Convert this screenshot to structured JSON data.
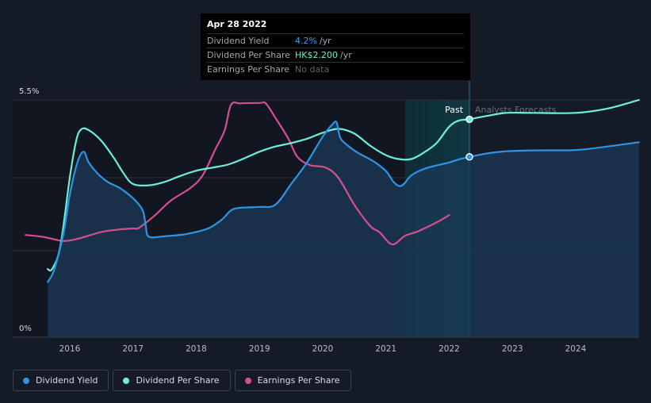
{
  "tooltip": {
    "date": "Apr 28 2022",
    "rows": [
      {
        "label": "Dividend Yield",
        "value": "4.2%",
        "unit": "/yr",
        "color": "#3b9ff0"
      },
      {
        "label": "Dividend Per Share",
        "value": "HK$2.200",
        "unit": "/yr",
        "color": "#6cf0d2"
      },
      {
        "label": "Earnings Per Share",
        "value": "No data",
        "unit": "",
        "color": "#5f646c"
      }
    ]
  },
  "legend": [
    {
      "label": "Dividend Yield",
      "color": "#2d94e6"
    },
    {
      "label": "Dividend Per Share",
      "color": "#6cf0d2"
    },
    {
      "label": "Earnings Per Share",
      "color": "#d64f8c"
    }
  ],
  "chart_data": {
    "type": "line",
    "y_tick_labels": [
      "5.5%",
      "0%"
    ],
    "ylim": [
      0,
      5.5
    ],
    "xlim": [
      2015.3,
      2025.0
    ],
    "x_ticks": [
      2016,
      2017,
      2018,
      2019,
      2020,
      2021,
      2022,
      2023,
      2024
    ],
    "x_tick_labels": [
      "2016",
      "2017",
      "2018",
      "2019",
      "2020",
      "2021",
      "2022",
      "2023",
      "2024"
    ],
    "grid": true,
    "past_label": "Past",
    "forecast_label": "Analysts Forecasts",
    "forecast_start": 2022.32,
    "shaded_start": 2021.3,
    "colors": {
      "dividend_yield": "#2d94e6",
      "dividend_per_share": "#6cf0d2",
      "earnings_per_share": "#d64f8c",
      "area_fill": "#1b3a57",
      "grid": "#2a303b"
    },
    "series": [
      {
        "name": "Dividend Yield",
        "key": "dividend_yield",
        "area": true,
        "x": [
          2015.65,
          2015.75,
          2015.9,
          2016.0,
          2016.12,
          2016.22,
          2016.3,
          2016.45,
          2016.6,
          2016.8,
          2017.0,
          2017.15,
          2017.2,
          2017.25,
          2017.5,
          2017.8,
          2018.0,
          2018.2,
          2018.4,
          2018.55,
          2018.7,
          2019.0,
          2019.25,
          2019.5,
          2019.75,
          2020.0,
          2020.15,
          2020.22,
          2020.27,
          2020.35,
          2020.55,
          2020.8,
          2021.0,
          2021.12,
          2021.22,
          2021.3,
          2021.4,
          2021.6,
          2021.8,
          2022.0,
          2022.15,
          2022.32
        ],
        "y": [
          1.28,
          1.55,
          2.4,
          3.3,
          4.05,
          4.3,
          4.05,
          3.78,
          3.6,
          3.45,
          3.22,
          2.95,
          2.6,
          2.33,
          2.34,
          2.38,
          2.44,
          2.53,
          2.72,
          2.94,
          3.0,
          3.02,
          3.07,
          3.55,
          4.05,
          4.65,
          4.93,
          4.98,
          4.65,
          4.5,
          4.28,
          4.08,
          3.85,
          3.6,
          3.5,
          3.58,
          3.75,
          3.9,
          3.98,
          4.05,
          4.12,
          4.18
        ]
      },
      {
        "name": "Dividend Yield forecast",
        "key": "dividend_yield",
        "area": true,
        "x": [
          2022.32,
          2022.6,
          2022.9,
          2023.3,
          2024.0,
          2024.5,
          2025.0
        ],
        "y": [
          4.18,
          4.26,
          4.31,
          4.33,
          4.34,
          4.42,
          4.52
        ]
      },
      {
        "name": "Dividend Per Share",
        "key": "dividend_per_share",
        "area": false,
        "x": [
          2015.65,
          2015.72,
          2015.85,
          2016.0,
          2016.1,
          2016.18,
          2016.3,
          2016.5,
          2016.7,
          2016.85,
          2017.0,
          2017.25,
          2017.5,
          2017.75,
          2018.0,
          2018.25,
          2018.5,
          2018.75,
          2019.0,
          2019.25,
          2019.5,
          2019.75,
          2020.0,
          2020.25,
          2020.5,
          2020.75,
          2021.0,
          2021.2,
          2021.4,
          2021.6,
          2021.8,
          2022.0,
          2022.15,
          2022.32
        ],
        "y": [
          1.58,
          1.58,
          2.1,
          3.7,
          4.55,
          4.82,
          4.8,
          4.55,
          4.15,
          3.8,
          3.55,
          3.52,
          3.6,
          3.74,
          3.86,
          3.93,
          4.0,
          4.14,
          4.3,
          4.42,
          4.5,
          4.6,
          4.74,
          4.83,
          4.72,
          4.44,
          4.22,
          4.13,
          4.13,
          4.28,
          4.5,
          4.88,
          5.02,
          5.05
        ]
      },
      {
        "name": "Dividend Per Share forecast",
        "key": "dividend_per_share",
        "area": false,
        "x": [
          2022.32,
          2022.6,
          2022.9,
          2023.3,
          2024.0,
          2024.5,
          2025.0
        ],
        "y": [
          5.05,
          5.13,
          5.2,
          5.2,
          5.2,
          5.3,
          5.5
        ]
      },
      {
        "name": "Earnings Per Share",
        "key": "earnings_per_share",
        "area": false,
        "x": [
          2015.3,
          2015.6,
          2015.9,
          2016.15,
          2016.5,
          2016.8,
          2017.0,
          2017.1,
          2017.35,
          2017.6,
          2017.9,
          2018.1,
          2018.3,
          2018.45,
          2018.55,
          2018.7,
          2019.0,
          2019.1,
          2019.25,
          2019.45,
          2019.6,
          2019.8,
          2020.05,
          2020.25,
          2020.5,
          2020.75,
          2020.9,
          2021.1,
          2021.3,
          2021.5,
          2021.8,
          2022.0
        ],
        "y": [
          2.37,
          2.32,
          2.23,
          2.29,
          2.44,
          2.5,
          2.52,
          2.54,
          2.83,
          3.17,
          3.45,
          3.75,
          4.35,
          4.8,
          5.39,
          5.42,
          5.43,
          5.42,
          5.09,
          4.62,
          4.18,
          3.99,
          3.93,
          3.69,
          3.07,
          2.58,
          2.43,
          2.15,
          2.35,
          2.45,
          2.66,
          2.83
        ]
      }
    ]
  }
}
